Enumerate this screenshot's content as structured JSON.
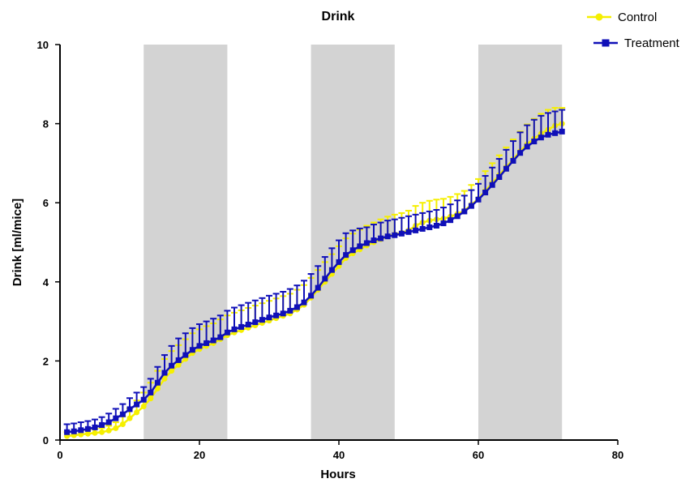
{
  "chart_data": {
    "type": "line",
    "title": "Drink",
    "xlabel": "Hours",
    "ylabel": "Drink [ml/mice]",
    "xlim": [
      0,
      80
    ],
    "ylim": [
      0,
      10
    ],
    "xticks": [
      0,
      20,
      40,
      60,
      80
    ],
    "yticks": [
      0,
      2,
      4,
      6,
      8,
      10
    ],
    "grid": false,
    "legend_position": "top-right",
    "dark_periods": [
      [
        12,
        24
      ],
      [
        36,
        48
      ],
      [
        60,
        72
      ]
    ],
    "shade_color": "#d3d3d3",
    "x": [
      1,
      2,
      3,
      4,
      5,
      6,
      7,
      8,
      9,
      10,
      11,
      12,
      13,
      14,
      15,
      16,
      17,
      18,
      19,
      20,
      21,
      22,
      23,
      24,
      25,
      26,
      27,
      28,
      29,
      30,
      31,
      32,
      33,
      34,
      35,
      36,
      37,
      38,
      39,
      40,
      41,
      42,
      43,
      44,
      45,
      46,
      47,
      48,
      49,
      50,
      51,
      52,
      53,
      54,
      55,
      56,
      57,
      58,
      59,
      60,
      61,
      62,
      63,
      64,
      65,
      66,
      67,
      68,
      69,
      70,
      71,
      72
    ],
    "series": [
      {
        "name": "Control",
        "color": "#f5ef00",
        "marker": "circle",
        "values": [
          0.1,
          0.12,
          0.14,
          0.16,
          0.18,
          0.2,
          0.24,
          0.3,
          0.4,
          0.55,
          0.7,
          0.85,
          1.05,
          1.3,
          1.55,
          1.75,
          1.9,
          2.05,
          2.2,
          2.3,
          2.38,
          2.45,
          2.55,
          2.65,
          2.72,
          2.78,
          2.84,
          2.9,
          2.96,
          3.02,
          3.08,
          3.14,
          3.2,
          3.3,
          3.42,
          3.6,
          3.8,
          4.0,
          4.2,
          4.4,
          4.6,
          4.72,
          4.82,
          4.92,
          5.0,
          5.08,
          5.15,
          5.2,
          5.24,
          5.3,
          5.42,
          5.5,
          5.55,
          5.58,
          5.6,
          5.65,
          5.72,
          5.8,
          5.95,
          6.1,
          6.3,
          6.5,
          6.7,
          6.9,
          7.1,
          7.3,
          7.48,
          7.62,
          7.75,
          7.85,
          7.95,
          8.0
        ],
        "errors": [
          0.1,
          0.1,
          0.1,
          0.1,
          0.1,
          0.1,
          0.12,
          0.15,
          0.2,
          0.25,
          0.3,
          0.35,
          0.4,
          0.45,
          0.5,
          0.5,
          0.5,
          0.5,
          0.5,
          0.5,
          0.5,
          0.5,
          0.5,
          0.5,
          0.5,
          0.5,
          0.5,
          0.5,
          0.5,
          0.5,
          0.5,
          0.5,
          0.5,
          0.5,
          0.5,
          0.5,
          0.5,
          0.5,
          0.5,
          0.5,
          0.5,
          0.5,
          0.5,
          0.5,
          0.5,
          0.5,
          0.5,
          0.5,
          0.5,
          0.5,
          0.5,
          0.5,
          0.5,
          0.5,
          0.5,
          0.5,
          0.5,
          0.5,
          0.5,
          0.5,
          0.5,
          0.5,
          0.5,
          0.5,
          0.5,
          0.5,
          0.5,
          0.5,
          0.5,
          0.5,
          0.45,
          0.4
        ]
      },
      {
        "name": "Treatment",
        "color": "#1010b8",
        "marker": "square",
        "values": [
          0.2,
          0.22,
          0.25,
          0.28,
          0.32,
          0.38,
          0.45,
          0.55,
          0.65,
          0.78,
          0.9,
          1.02,
          1.2,
          1.45,
          1.7,
          1.88,
          2.02,
          2.15,
          2.28,
          2.38,
          2.45,
          2.52,
          2.6,
          2.72,
          2.8,
          2.86,
          2.92,
          2.98,
          3.04,
          3.1,
          3.15,
          3.2,
          3.27,
          3.36,
          3.48,
          3.65,
          3.85,
          4.08,
          4.3,
          4.5,
          4.68,
          4.8,
          4.9,
          4.98,
          5.05,
          5.1,
          5.15,
          5.18,
          5.22,
          5.26,
          5.3,
          5.34,
          5.38,
          5.42,
          5.48,
          5.56,
          5.66,
          5.78,
          5.92,
          6.08,
          6.26,
          6.45,
          6.65,
          6.86,
          7.06,
          7.26,
          7.42,
          7.55,
          7.65,
          7.72,
          7.76,
          7.8
        ],
        "errors": [
          0.2,
          0.2,
          0.2,
          0.2,
          0.2,
          0.2,
          0.22,
          0.24,
          0.26,
          0.28,
          0.3,
          0.32,
          0.35,
          0.4,
          0.45,
          0.5,
          0.55,
          0.55,
          0.55,
          0.55,
          0.55,
          0.55,
          0.55,
          0.55,
          0.55,
          0.55,
          0.55,
          0.55,
          0.55,
          0.55,
          0.55,
          0.55,
          0.55,
          0.55,
          0.55,
          0.55,
          0.55,
          0.55,
          0.55,
          0.55,
          0.55,
          0.5,
          0.45,
          0.4,
          0.4,
          0.4,
          0.4,
          0.4,
          0.4,
          0.4,
          0.4,
          0.4,
          0.4,
          0.4,
          0.4,
          0.4,
          0.4,
          0.4,
          0.4,
          0.4,
          0.42,
          0.44,
          0.46,
          0.48,
          0.5,
          0.52,
          0.54,
          0.55,
          0.55,
          0.55,
          0.55,
          0.55
        ]
      }
    ]
  }
}
